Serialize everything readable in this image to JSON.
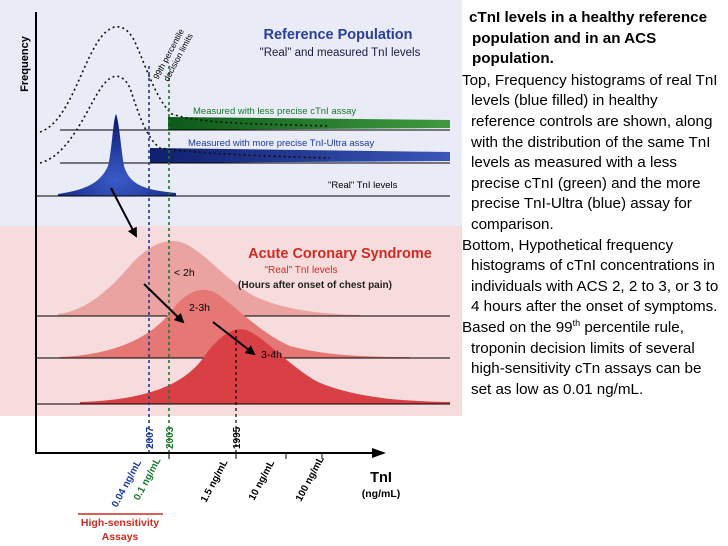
{
  "figure": {
    "y_axis_label": "Frequency",
    "top_panel": {
      "title": "Reference Population",
      "subtitle": "\"Real\" and measured TnI levels",
      "percentile_note_line1": "99th percentile",
      "percentile_note_line2": "decision limits",
      "measured_less_precise": "Measured with less precise cTnI assay",
      "measured_more_precise": "Measured with more precise TnI-Ultra assay",
      "real_levels": "\"Real\" TnI levels"
    },
    "bottom_panel": {
      "title": "Acute Coronary Syndrome",
      "subtitle": "\"Real\" TnI levels",
      "subtitle2": "(Hours after onset of chest pain)",
      "curve_labels": [
        "< 2h",
        "2-3h",
        "3-4h"
      ]
    },
    "year_labels": [
      "2007",
      "2003",
      "1995"
    ],
    "x_ticks": [
      "0.04 ng/mL",
      "0.1 ng/mL",
      "1.5 ng/mL",
      "10 ng/mL",
      "100 ng/mL"
    ],
    "x_axis_label": "TnI",
    "x_axis_unit": "(ng/mL)",
    "hs_label_line1": "High-sensitivity",
    "hs_label_line2": "Assays",
    "colors": {
      "top_bg": "#e9ebf7",
      "bottom_bg": "#f7dcdd",
      "blue": "#1c3a9c",
      "green": "#1a7a2a",
      "title_red": "#cf2b21",
      "title_blue": "#2a3f9c"
    }
  },
  "caption": {
    "title": "cTnI levels in a healthy reference population and in an ACS population.",
    "p1": "Top, Frequency histograms of real TnI levels (blue filled) in healthy reference controls are shown, along with the distribution of the same TnI levels as measured with a less precise cTnI (green) and the more precise TnI-Ultra (blue) assay for comparison.",
    "p2": "Bottom, Hypothetical frequency histograms of cTnI concentrations in individuals with ACS 2, 2 to 3, or 3 to 4 hours after the onset of symptoms.",
    "p3_before": "Based on the 99",
    "p3_sup": "th",
    "p3_after": " percentile rule, troponin decision limits of several high-sensitivity cTn assays can be set as low as 0.01 ng/mL."
  }
}
